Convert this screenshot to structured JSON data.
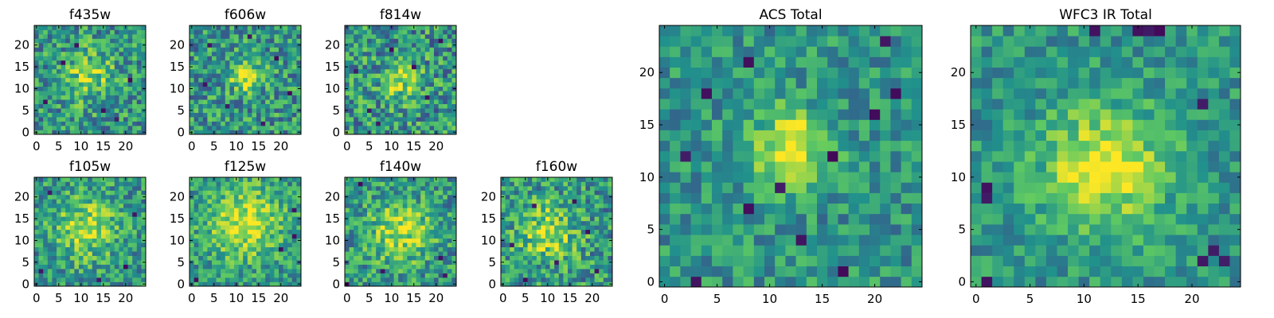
{
  "figure": {
    "colormap": "viridis",
    "colormap_stops": [
      "#440154",
      "#3b528b",
      "#21918c",
      "#5ec962",
      "#fde725"
    ],
    "axis_color": "#000000"
  },
  "chart_data": [
    {
      "type": "heatmap",
      "title": "f435w",
      "grid_size": 25,
      "xlim": [
        0,
        24
      ],
      "ylim": [
        0,
        24
      ],
      "xticks": [
        0,
        5,
        10,
        15,
        20
      ],
      "yticks": [
        0,
        5,
        10,
        15,
        20
      ],
      "value_range": [
        0,
        1
      ],
      "noise_level": 0.55,
      "source": {
        "cx": 12,
        "cy": 13,
        "amp": 0.3,
        "sigma": 4
      },
      "dark_pixels": [
        [
          2,
          7
        ],
        [
          6,
          16
        ],
        [
          18,
          3
        ],
        [
          21,
          12
        ],
        [
          9,
          20
        ],
        [
          15,
          5
        ]
      ]
    },
    {
      "type": "heatmap",
      "title": "f606w",
      "grid_size": 25,
      "xlim": [
        0,
        24
      ],
      "ylim": [
        0,
        24
      ],
      "xticks": [
        0,
        5,
        10,
        15,
        20
      ],
      "yticks": [
        0,
        5,
        10,
        15,
        20
      ],
      "value_range": [
        0,
        1
      ],
      "noise_level": 0.55,
      "source": {
        "cx": 12,
        "cy": 13,
        "amp": 0.45,
        "sigma": 2.5
      },
      "dark_pixels": [
        [
          4,
          20
        ],
        [
          16,
          2
        ],
        [
          22,
          9
        ],
        [
          8,
          6
        ],
        [
          19,
          17
        ],
        [
          3,
          11
        ],
        [
          13,
          22
        ]
      ]
    },
    {
      "type": "heatmap",
      "title": "f814w",
      "grid_size": 25,
      "xlim": [
        0,
        24
      ],
      "ylim": [
        0,
        24
      ],
      "xticks": [
        0,
        5,
        10,
        15,
        20
      ],
      "yticks": [
        0,
        5,
        10,
        15,
        20
      ],
      "value_range": [
        0,
        1
      ],
      "noise_level": 0.6,
      "source": {
        "cx": 12,
        "cy": 12,
        "amp": 0.35,
        "sigma": 3
      },
      "dark_pixels": [
        [
          5,
          5
        ],
        [
          18,
          8
        ],
        [
          10,
          19
        ],
        [
          21,
          21
        ],
        [
          2,
          14
        ],
        [
          15,
          15
        ],
        [
          7,
          2
        ]
      ]
    },
    {
      "type": "heatmap",
      "title": "f105w",
      "grid_size": 25,
      "xlim": [
        0,
        24
      ],
      "ylim": [
        0,
        24
      ],
      "xticks": [
        0,
        5,
        10,
        15,
        20
      ],
      "yticks": [
        0,
        5,
        10,
        15,
        20
      ],
      "value_range": [
        0,
        1
      ],
      "noise_level": 0.5,
      "source": {
        "cx": 11,
        "cy": 13,
        "amp": 0.35,
        "sigma": 5
      },
      "dark_pixels": [
        [
          3,
          21
        ],
        [
          20,
          4
        ],
        [
          22,
          16
        ],
        [
          1,
          3
        ],
        [
          14,
          1
        ]
      ]
    },
    {
      "type": "heatmap",
      "title": "f125w",
      "grid_size": 25,
      "xlim": [
        0,
        24
      ],
      "ylim": [
        0,
        24
      ],
      "xticks": [
        0,
        5,
        10,
        15,
        20
      ],
      "yticks": [
        0,
        5,
        10,
        15,
        20
      ],
      "value_range": [
        0,
        1
      ],
      "noise_level": 0.45,
      "source": {
        "cx": 12,
        "cy": 14,
        "amp": 0.4,
        "sigma": 6
      },
      "dark_pixels": [
        [
          23,
          17
        ],
        [
          23,
          11
        ],
        [
          1,
          1
        ],
        [
          20,
          8
        ]
      ]
    },
    {
      "type": "heatmap",
      "title": "f140w",
      "grid_size": 25,
      "xlim": [
        0,
        24
      ],
      "ylim": [
        0,
        24
      ],
      "xticks": [
        0,
        5,
        10,
        15,
        20
      ],
      "yticks": [
        0,
        5,
        10,
        15,
        20
      ],
      "value_range": [
        0,
        1
      ],
      "noise_level": 0.5,
      "source": {
        "cx": 12,
        "cy": 12,
        "amp": 0.35,
        "sigma": 5
      },
      "dark_pixels": [
        [
          21,
          6
        ],
        [
          22,
          2
        ],
        [
          0,
          0
        ],
        [
          3,
          23
        ],
        [
          8,
          3
        ]
      ]
    },
    {
      "type": "heatmap",
      "title": "f160w",
      "grid_size": 25,
      "xlim": [
        0,
        24
      ],
      "ylim": [
        0,
        24
      ],
      "xticks": [
        0,
        5,
        10,
        15,
        20
      ],
      "yticks": [
        0,
        5,
        10,
        15,
        20
      ],
      "value_range": [
        0,
        1
      ],
      "noise_level": 0.55,
      "source": {
        "cx": 10,
        "cy": 12,
        "amp": 0.3,
        "sigma": 5
      },
      "dark_pixels": [
        [
          7,
          18
        ],
        [
          16,
          19
        ],
        [
          2,
          9
        ],
        [
          21,
          3
        ],
        [
          12,
          5
        ],
        [
          19,
          12
        ],
        [
          5,
          1
        ]
      ]
    },
    {
      "type": "heatmap",
      "title": "ACS Total",
      "grid_size": 25,
      "xlim": [
        0,
        24
      ],
      "ylim": [
        0,
        24
      ],
      "xticks": [
        0,
        5,
        10,
        15,
        20
      ],
      "yticks": [
        0,
        5,
        10,
        15,
        20
      ],
      "value_range": [
        0,
        1
      ],
      "noise_level": 0.4,
      "source": {
        "cx": 12,
        "cy": 13,
        "amp": 0.45,
        "sigma": 2.5
      },
      "dark_pixels": [
        [
          4,
          18
        ],
        [
          8,
          21
        ],
        [
          2,
          12
        ],
        [
          16,
          12
        ],
        [
          20,
          16
        ],
        [
          22,
          18
        ],
        [
          8,
          7
        ],
        [
          13,
          4
        ],
        [
          17,
          1
        ],
        [
          3,
          0
        ],
        [
          21,
          23
        ],
        [
          11,
          9
        ]
      ]
    },
    {
      "type": "heatmap",
      "title": "WFC3 IR Total",
      "grid_size": 25,
      "xlim": [
        0,
        24
      ],
      "ylim": [
        0,
        24
      ],
      "xticks": [
        0,
        5,
        10,
        15,
        20
      ],
      "yticks": [
        0,
        5,
        10,
        15,
        20
      ],
      "value_range": [
        0,
        1
      ],
      "noise_level": 0.35,
      "source": {
        "cx": 12,
        "cy": 11,
        "amp": 0.45,
        "sigma": 4
      },
      "dark_pixels": [
        [
          1,
          9
        ],
        [
          1,
          8
        ],
        [
          1,
          0
        ],
        [
          16,
          24
        ],
        [
          17,
          24
        ],
        [
          15,
          24
        ],
        [
          21,
          17
        ],
        [
          22,
          3
        ],
        [
          23,
          2
        ],
        [
          21,
          2
        ],
        [
          11,
          24
        ]
      ]
    }
  ]
}
